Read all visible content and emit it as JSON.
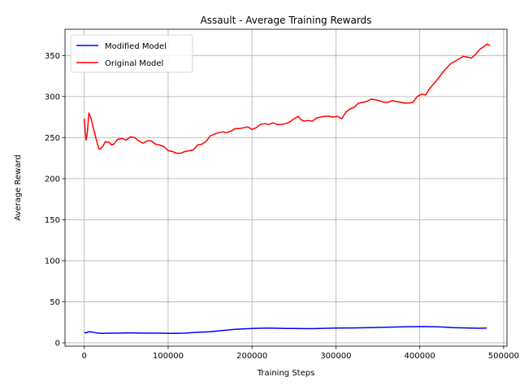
{
  "chart_data": {
    "type": "line",
    "title": "Assault - Average Training Rewards",
    "xlabel": "Training Steps",
    "ylabel": "Average Reward",
    "xlim": [
      -23000,
      504000
    ],
    "ylim": [
      -4,
      382
    ],
    "xticks": [
      0,
      100000,
      200000,
      300000,
      400000,
      500000
    ],
    "xtick_labels": [
      "0",
      "100000",
      "200000",
      "300000",
      "400000",
      "500000"
    ],
    "yticks": [
      0,
      50,
      100,
      150,
      200,
      250,
      300,
      350
    ],
    "ytick_labels": [
      "0",
      "50",
      "100",
      "150",
      "200",
      "250",
      "300",
      "350"
    ],
    "grid": true,
    "legend_position": "top-left",
    "series": [
      {
        "name": "Modified Model",
        "color": "#0000ff",
        "x": [
          0,
          2000,
          5000,
          10000,
          15000,
          20000,
          30000,
          40000,
          50000,
          60000,
          70000,
          80000,
          90000,
          100000,
          110000,
          120000,
          130000,
          140000,
          150000,
          160000,
          170000,
          180000,
          190000,
          200000,
          210000,
          220000,
          230000,
          240000,
          250000,
          260000,
          270000,
          280000,
          290000,
          300000,
          320000,
          340000,
          360000,
          380000,
          400000,
          410000,
          420000,
          430000,
          440000,
          450000,
          460000,
          470000,
          480000
        ],
        "values": [
          13,
          12,
          13.5,
          13,
          12,
          11.5,
          11.8,
          11.8,
          12,
          12,
          11.8,
          11.8,
          11.8,
          11.6,
          11.6,
          11.8,
          12.5,
          13,
          13.5,
          14.5,
          15.5,
          16.5,
          17,
          17.5,
          17.8,
          18,
          17.8,
          17.6,
          17.5,
          17.4,
          17.3,
          17.5,
          17.8,
          18,
          18.2,
          18.5,
          19,
          19.5,
          19.9,
          19.8,
          19.6,
          19.2,
          18.5,
          18.3,
          18.1,
          17.8,
          18
        ]
      },
      {
        "name": "Original Model",
        "color": "#ff0000",
        "x": [
          0,
          2000,
          3500,
          5500,
          7500,
          10000,
          12500,
          15000,
          17500,
          20000,
          22500,
          25000,
          30000,
          32500,
          35000,
          40000,
          45000,
          50000,
          55000,
          60000,
          65000,
          70000,
          75000,
          80000,
          85000,
          90000,
          95000,
          100000,
          105000,
          110000,
          115000,
          120000,
          125000,
          130000,
          135000,
          140000,
          145000,
          150000,
          155000,
          160000,
          165000,
          170000,
          175000,
          180000,
          185000,
          190000,
          195000,
          200000,
          205000,
          210000,
          215000,
          220000,
          225000,
          230000,
          235000,
          240000,
          245000,
          250000,
          255000,
          258000,
          262000,
          267000,
          272000,
          277000,
          282000,
          287000,
          292000,
          297000,
          302000,
          307000,
          312000,
          317000,
          322000,
          327000,
          332000,
          337000,
          342000,
          347000,
          352000,
          357000,
          362000,
          367000,
          372000,
          377000,
          382000,
          387000,
          392000,
          397000,
          402000,
          407000,
          412000,
          417000,
          422000,
          427000,
          432000,
          437000,
          442000,
          447000,
          452000,
          457000,
          462000,
          467000,
          472000,
          477000,
          480000,
          484000
        ],
        "values": [
          273,
          247,
          255,
          280,
          275,
          265,
          255,
          245,
          236,
          237,
          240,
          245,
          244,
          241,
          242,
          248,
          249,
          247,
          251,
          250,
          246,
          243,
          246,
          246,
          242,
          241,
          239,
          234,
          233,
          231,
          231,
          233,
          234,
          235,
          241,
          242,
          245,
          252,
          254,
          256,
          257,
          256,
          258,
          261,
          261,
          262,
          263,
          260,
          262,
          266,
          267,
          266,
          268,
          266,
          266,
          267,
          269,
          273,
          276,
          272,
          270,
          271,
          270,
          274,
          275,
          276,
          276,
          275,
          276,
          273,
          281,
          285,
          287,
          292,
          293,
          294,
          297,
          296,
          295,
          293,
          293,
          295,
          294,
          293,
          292,
          292,
          293,
          300,
          303,
          302,
          310,
          316,
          322,
          329,
          335,
          340,
          343,
          346,
          349,
          348,
          347,
          352,
          358,
          361,
          364,
          362
        ]
      }
    ]
  }
}
